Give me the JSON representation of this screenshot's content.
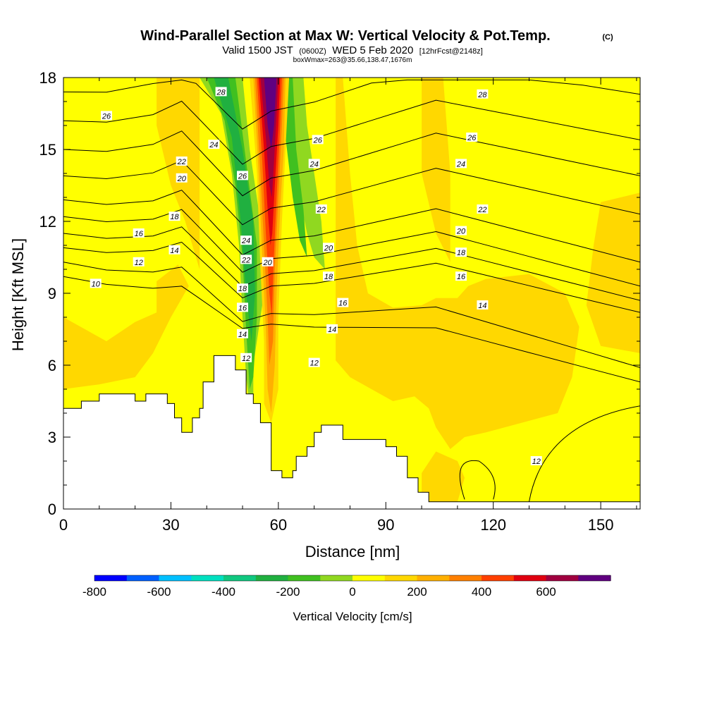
{
  "title": {
    "main": "Wind-Parallel Section at Max W: Vertical Velocity & Pot.Temp.",
    "copyright": "(C)",
    "valid_prefix": "Valid 1500 JST",
    "valid_utc": "(0600Z)",
    "valid_date": "WED 5 Feb 2020",
    "forecast": "[12hrFcst@2148z]",
    "box_info": "boxWmax=263@35.66,138.47,1676m"
  },
  "chart_data": {
    "type": "heatmap",
    "xlabel": "Distance [nm]",
    "ylabel": "Height [Kft MSL]",
    "xlim": [
      0,
      161
    ],
    "ylim": [
      0,
      18
    ],
    "x_ticks": [
      0,
      30,
      60,
      90,
      120,
      150
    ],
    "y_ticks": [
      0,
      3,
      6,
      9,
      12,
      15,
      18
    ],
    "x_minor_step": 10,
    "y_minor_step": 1,
    "colorbar": {
      "title": "Vertical Velocity [cm/s]",
      "tick_labels": [
        -800,
        -600,
        -400,
        -200,
        0,
        200,
        400,
        600
      ],
      "levels": [
        -800,
        -700,
        -600,
        -500,
        -400,
        -300,
        -200,
        -100,
        0,
        100,
        200,
        300,
        400,
        500,
        600,
        700
      ],
      "colors": [
        "#0000ff",
        "#0060ff",
        "#00c0ff",
        "#00e0c0",
        "#10c880",
        "#20b040",
        "#40c020",
        "#90d820",
        "#ffff00",
        "#ffd800",
        "#ffb000",
        "#ff8000",
        "#ff4000",
        "#e00010",
        "#a00040",
        "#600080"
      ]
    },
    "terrain_profile": [
      [
        0,
        4.2
      ],
      [
        5,
        4.2
      ],
      [
        5,
        4.5
      ],
      [
        10,
        4.5
      ],
      [
        10,
        4.8
      ],
      [
        20,
        4.8
      ],
      [
        20,
        4.5
      ],
      [
        23,
        4.5
      ],
      [
        23,
        4.8
      ],
      [
        29,
        4.8
      ],
      [
        29,
        4.4
      ],
      [
        31,
        4.4
      ],
      [
        31,
        3.8
      ],
      [
        33,
        3.8
      ],
      [
        33,
        3.2
      ],
      [
        36,
        3.2
      ],
      [
        36,
        3.8
      ],
      [
        38,
        3.8
      ],
      [
        38,
        4.2
      ],
      [
        39,
        4.2
      ],
      [
        39,
        5.3
      ],
      [
        42,
        5.3
      ],
      [
        42,
        6.4
      ],
      [
        48,
        6.4
      ],
      [
        48,
        5.8
      ],
      [
        51,
        5.8
      ],
      [
        51,
        4.8
      ],
      [
        53,
        4.8
      ],
      [
        53,
        4.4
      ],
      [
        55,
        4.4
      ],
      [
        55,
        3.6
      ],
      [
        58,
        3.6
      ],
      [
        58,
        1.6
      ],
      [
        61,
        1.6
      ],
      [
        61,
        1.3
      ],
      [
        64,
        1.3
      ],
      [
        64,
        1.6
      ],
      [
        65,
        1.6
      ],
      [
        65,
        2.2
      ],
      [
        68,
        2.2
      ],
      [
        68,
        2.6
      ],
      [
        70,
        2.6
      ],
      [
        70,
        3.2
      ],
      [
        72,
        3.2
      ],
      [
        72,
        3.5
      ],
      [
        78,
        3.5
      ],
      [
        78,
        2.9
      ],
      [
        90,
        2.9
      ],
      [
        90,
        2.6
      ],
      [
        93,
        2.6
      ],
      [
        93,
        2.2
      ],
      [
        96,
        2.2
      ],
      [
        96,
        1.3
      ],
      [
        99,
        1.3
      ],
      [
        99,
        0.7
      ],
      [
        102,
        0.7
      ],
      [
        102,
        0.3
      ],
      [
        161,
        0.3
      ],
      [
        161,
        0
      ],
      [
        0,
        0
      ]
    ],
    "theta_contours": [
      {
        "level": 10,
        "y_left": 9.7,
        "y_right": 5.3,
        "dip": 0
      },
      {
        "level": 12,
        "y_left": 10.3,
        "y_right": 5.9,
        "dip": 1.3
      },
      {
        "level": 14,
        "y_left": 10.9,
        "y_right": 8.2,
        "dip": 1.9
      },
      {
        "level": 16,
        "y_left": 11.5,
        "y_right": 8.7,
        "dip": 2.3
      },
      {
        "level": 18,
        "y_left": 12.2,
        "y_right": 9.3,
        "dip": 2.6
      },
      {
        "level": 20,
        "y_left": 12.9,
        "y_right": 10.3,
        "dip": 2.9
      },
      {
        "level": 22,
        "y_left": 13.9,
        "y_right": 12.3,
        "dip": 3.1
      },
      {
        "level": 24,
        "y_left": 15.0,
        "y_right": 13.9,
        "dip": 3.3
      },
      {
        "level": 26,
        "y_left": 16.2,
        "y_right": 15.4,
        "dip": 3.2
      },
      {
        "level": 28,
        "y_left": 17.4,
        "y_right": 17.3,
        "dip": 3.0
      }
    ],
    "contour_labels": [
      {
        "text": "26",
        "x": 12,
        "y": 16.4
      },
      {
        "text": "22",
        "x": 33,
        "y": 14.5
      },
      {
        "text": "20",
        "x": 33,
        "y": 13.8
      },
      {
        "text": "18",
        "x": 31,
        "y": 12.2
      },
      {
        "text": "16",
        "x": 21,
        "y": 11.5
      },
      {
        "text": "14",
        "x": 31,
        "y": 10.8
      },
      {
        "text": "12",
        "x": 21,
        "y": 10.3
      },
      {
        "text": "10",
        "x": 9,
        "y": 9.4
      },
      {
        "text": "28",
        "x": 44,
        "y": 17.4
      },
      {
        "text": "24",
        "x": 42,
        "y": 15.2
      },
      {
        "text": "26",
        "x": 50,
        "y": 13.9
      },
      {
        "text": "24",
        "x": 51,
        "y": 11.2
      },
      {
        "text": "22",
        "x": 51,
        "y": 10.4
      },
      {
        "text": "20",
        "x": 57,
        "y": 10.3
      },
      {
        "text": "18",
        "x": 50,
        "y": 9.2
      },
      {
        "text": "16",
        "x": 50,
        "y": 8.4
      },
      {
        "text": "14",
        "x": 50,
        "y": 7.3
      },
      {
        "text": "12",
        "x": 51,
        "y": 6.3
      },
      {
        "text": "26",
        "x": 71,
        "y": 15.4
      },
      {
        "text": "24",
        "x": 70,
        "y": 14.4
      },
      {
        "text": "22",
        "x": 72,
        "y": 12.5
      },
      {
        "text": "20",
        "x": 74,
        "y": 10.9
      },
      {
        "text": "18",
        "x": 74,
        "y": 9.7
      },
      {
        "text": "16",
        "x": 78,
        "y": 8.6
      },
      {
        "text": "14",
        "x": 75,
        "y": 7.5
      },
      {
        "text": "12",
        "x": 70,
        "y": 6.1
      },
      {
        "text": "28",
        "x": 117,
        "y": 17.3
      },
      {
        "text": "26",
        "x": 114,
        "y": 15.5
      },
      {
        "text": "24",
        "x": 111,
        "y": 14.4
      },
      {
        "text": "22",
        "x": 117,
        "y": 12.5
      },
      {
        "text": "20",
        "x": 111,
        "y": 11.6
      },
      {
        "text": "18",
        "x": 111,
        "y": 10.7
      },
      {
        "text": "16",
        "x": 111,
        "y": 9.7
      },
      {
        "text": "14",
        "x": 117,
        "y": 8.5
      },
      {
        "text": "12",
        "x": 132,
        "y": 2.0
      }
    ]
  }
}
